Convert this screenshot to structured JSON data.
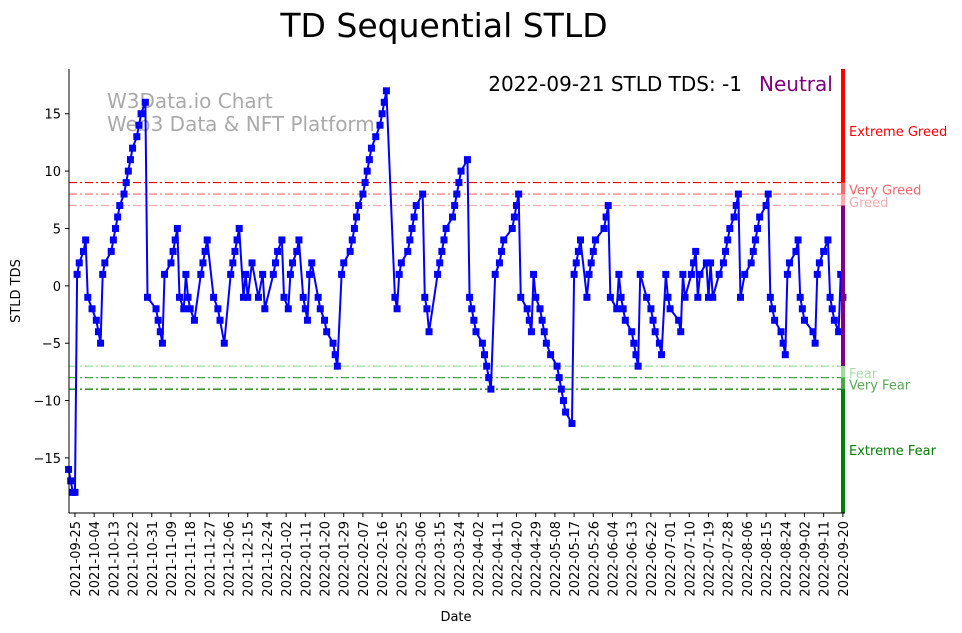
{
  "chart_data": {
    "type": "line",
    "title": "TD Sequential STLD",
    "xlabel": "Date",
    "ylabel": "STLD TDS",
    "status_text": "2022-09-21 STLD TDS: -1",
    "status_label": "Neutral",
    "watermark": [
      "W3Data.io Chart",
      "Web3 Data & NFT Platform"
    ],
    "start_date": "2021-09-25",
    "xlim_days": [
      -2.8,
      361
    ],
    "ylim": [
      -19.8,
      18.9
    ],
    "yticks": [
      -15,
      -10,
      -5,
      0,
      5,
      10,
      15
    ],
    "xtick_labels": [
      "2021-09-25",
      "2021-10-04",
      "2021-10-13",
      "2021-10-22",
      "2021-10-31",
      "2021-11-09",
      "2021-11-18",
      "2021-11-27",
      "2021-12-06",
      "2021-12-15",
      "2021-12-24",
      "2022-01-02",
      "2022-01-11",
      "2022-01-20",
      "2022-01-29",
      "2022-02-07",
      "2022-02-16",
      "2022-02-25",
      "2022-03-06",
      "2022-03-15",
      "2022-03-24",
      "2022-04-02",
      "2022-04-11",
      "2022-04-20",
      "2022-04-29",
      "2022-05-08",
      "2022-05-17",
      "2022-05-26",
      "2022-06-04",
      "2022-06-13",
      "2022-06-22",
      "2022-07-01",
      "2022-07-10",
      "2022-07-19",
      "2022-07-28",
      "2022-08-06",
      "2022-08-15",
      "2022-08-24",
      "2022-09-02",
      "2022-09-11",
      "2022-09-20"
    ],
    "xtick_step_days": 9,
    "series": [
      {
        "name": "STLD TDS",
        "color": "#0000ff",
        "points_day_value": [
          [
            -3,
            -16
          ],
          [
            -2,
            -17
          ],
          [
            -1,
            -18
          ],
          [
            0,
            -18
          ],
          [
            1,
            1
          ],
          [
            2,
            2
          ],
          [
            4,
            3
          ],
          [
            5,
            4
          ],
          [
            6,
            -1
          ],
          [
            8,
            -2
          ],
          [
            10,
            -3
          ],
          [
            11,
            -4
          ],
          [
            12,
            -5
          ],
          [
            13,
            1
          ],
          [
            14,
            2
          ],
          [
            17,
            3
          ],
          [
            18,
            4
          ],
          [
            19,
            5
          ],
          [
            20,
            6
          ],
          [
            21,
            7
          ],
          [
            23,
            8
          ],
          [
            24,
            9
          ],
          [
            25,
            10
          ],
          [
            26,
            11
          ],
          [
            27,
            12
          ],
          [
            29,
            13
          ],
          [
            30,
            14
          ],
          [
            31,
            15
          ],
          [
            33,
            16
          ],
          [
            34,
            -1
          ],
          [
            38,
            -2
          ],
          [
            39,
            -3
          ],
          [
            40,
            -4
          ],
          [
            41,
            -5
          ],
          [
            42,
            1
          ],
          [
            45,
            2
          ],
          [
            46,
            3
          ],
          [
            47,
            4
          ],
          [
            48,
            5
          ],
          [
            49,
            -1
          ],
          [
            51,
            -2
          ],
          [
            52,
            1
          ],
          [
            53,
            -1
          ],
          [
            54,
            -2
          ],
          [
            56,
            -3
          ],
          [
            59,
            1
          ],
          [
            60,
            2
          ],
          [
            61,
            3
          ],
          [
            62,
            4
          ],
          [
            65,
            -1
          ],
          [
            67,
            -2
          ],
          [
            68,
            -3
          ],
          [
            70,
            -5
          ],
          [
            73,
            1
          ],
          [
            74,
            2
          ],
          [
            75,
            3
          ],
          [
            76,
            4
          ],
          [
            77,
            5
          ],
          [
            79,
            -1
          ],
          [
            80,
            1
          ],
          [
            81,
            -1
          ],
          [
            83,
            2
          ],
          [
            86,
            -1
          ],
          [
            88,
            1
          ],
          [
            89,
            -2
          ],
          [
            93,
            1
          ],
          [
            94,
            2
          ],
          [
            95,
            3
          ],
          [
            97,
            4
          ],
          [
            98,
            -1
          ],
          [
            100,
            -2
          ],
          [
            101,
            1
          ],
          [
            102,
            2
          ],
          [
            104,
            3
          ],
          [
            105,
            4
          ],
          [
            107,
            -1
          ],
          [
            108,
            -2
          ],
          [
            109,
            -3
          ],
          [
            110,
            1
          ],
          [
            111,
            2
          ],
          [
            114,
            -1
          ],
          [
            115,
            -2
          ],
          [
            117,
            -3
          ],
          [
            118,
            -4
          ],
          [
            121,
            -5
          ],
          [
            122,
            -6
          ],
          [
            123,
            -7
          ],
          [
            125,
            1
          ],
          [
            126,
            2
          ],
          [
            129,
            3
          ],
          [
            130,
            4
          ],
          [
            131,
            5
          ],
          [
            132,
            6
          ],
          [
            133,
            7
          ],
          [
            135,
            8
          ],
          [
            136,
            9
          ],
          [
            137,
            10
          ],
          [
            138,
            11
          ],
          [
            139,
            12
          ],
          [
            141,
            13
          ],
          [
            143,
            14
          ],
          [
            144,
            15
          ],
          [
            145,
            16
          ],
          [
            146,
            17
          ],
          [
            150,
            -1
          ],
          [
            151,
            -2
          ],
          [
            152,
            1
          ],
          [
            153,
            2
          ],
          [
            156,
            3
          ],
          [
            157,
            4
          ],
          [
            158,
            5
          ],
          [
            159,
            6
          ],
          [
            160,
            7
          ],
          [
            163,
            8
          ],
          [
            164,
            -1
          ],
          [
            165,
            -2
          ],
          [
            166,
            -4
          ],
          [
            170,
            1
          ],
          [
            171,
            2
          ],
          [
            172,
            3
          ],
          [
            173,
            4
          ],
          [
            174,
            5
          ],
          [
            177,
            6
          ],
          [
            178,
            7
          ],
          [
            179,
            8
          ],
          [
            180,
            9
          ],
          [
            181,
            10
          ],
          [
            184,
            11
          ],
          [
            185,
            -1
          ],
          [
            186,
            -2
          ],
          [
            187,
            -3
          ],
          [
            188,
            -4
          ],
          [
            191,
            -5
          ],
          [
            192,
            -6
          ],
          [
            193,
            -7
          ],
          [
            194,
            -8
          ],
          [
            195,
            -9
          ],
          [
            197,
            1
          ],
          [
            199,
            2
          ],
          [
            200,
            3
          ],
          [
            201,
            4
          ],
          [
            205,
            5
          ],
          [
            206,
            6
          ],
          [
            207,
            7
          ],
          [
            208,
            8
          ],
          [
            209,
            -1
          ],
          [
            212,
            -2
          ],
          [
            213,
            -3
          ],
          [
            214,
            -4
          ],
          [
            215,
            1
          ],
          [
            216,
            -1
          ],
          [
            218,
            -2
          ],
          [
            219,
            -3
          ],
          [
            220,
            -4
          ],
          [
            221,
            -5
          ],
          [
            223,
            -6
          ],
          [
            226,
            -7
          ],
          [
            227,
            -8
          ],
          [
            228,
            -9
          ],
          [
            229,
            -10
          ],
          [
            230,
            -11
          ],
          [
            233,
            -12
          ],
          [
            234,
            1
          ],
          [
            235,
            2
          ],
          [
            236,
            3
          ],
          [
            237,
            4
          ],
          [
            240,
            -1
          ],
          [
            241,
            1
          ],
          [
            242,
            2
          ],
          [
            243,
            3
          ],
          [
            244,
            4
          ],
          [
            248,
            5
          ],
          [
            249,
            6
          ],
          [
            250,
            7
          ],
          [
            251,
            -1
          ],
          [
            254,
            -2
          ],
          [
            255,
            1
          ],
          [
            256,
            -1
          ],
          [
            257,
            -2
          ],
          [
            258,
            -3
          ],
          [
            261,
            -4
          ],
          [
            262,
            -5
          ],
          [
            263,
            -6
          ],
          [
            264,
            -7
          ],
          [
            265,
            1
          ],
          [
            268,
            -1
          ],
          [
            270,
            -2
          ],
          [
            271,
            -3
          ],
          [
            272,
            -4
          ],
          [
            274,
            -5
          ],
          [
            275,
            -6
          ],
          [
            277,
            1
          ],
          [
            278,
            -1
          ],
          [
            279,
            -2
          ],
          [
            283,
            -3
          ],
          [
            284,
            -4
          ],
          [
            285,
            1
          ],
          [
            286,
            -1
          ],
          [
            289,
            1
          ],
          [
            290,
            2
          ],
          [
            291,
            3
          ],
          [
            292,
            -1
          ],
          [
            293,
            1
          ],
          [
            296,
            2
          ],
          [
            297,
            -1
          ],
          [
            298,
            2
          ],
          [
            299,
            -1
          ],
          [
            302,
            1
          ],
          [
            304,
            2
          ],
          [
            305,
            3
          ],
          [
            306,
            4
          ],
          [
            307,
            5
          ],
          [
            309,
            6
          ],
          [
            310,
            7
          ],
          [
            311,
            8
          ],
          [
            312,
            -1
          ],
          [
            314,
            1
          ],
          [
            317,
            2
          ],
          [
            318,
            3
          ],
          [
            319,
            4
          ],
          [
            320,
            5
          ],
          [
            321,
            6
          ],
          [
            324,
            7
          ],
          [
            325,
            8
          ],
          [
            326,
            -1
          ],
          [
            327,
            -2
          ],
          [
            328,
            -3
          ],
          [
            331,
            -4
          ],
          [
            332,
            -5
          ],
          [
            333,
            -6
          ],
          [
            334,
            1
          ],
          [
            335,
            2
          ],
          [
            338,
            3
          ],
          [
            339,
            4
          ],
          [
            340,
            -1
          ],
          [
            341,
            -2
          ],
          [
            342,
            -3
          ],
          [
            346,
            -4
          ],
          [
            347,
            -5
          ],
          [
            348,
            1
          ],
          [
            349,
            2
          ],
          [
            351,
            3
          ],
          [
            353,
            4
          ],
          [
            354,
            -1
          ],
          [
            355,
            -2
          ],
          [
            356,
            -3
          ],
          [
            358,
            -4
          ],
          [
            359,
            1
          ],
          [
            360,
            -1
          ]
        ]
      }
    ],
    "thresholds": [
      {
        "value": 9,
        "label": "Extreme Greed",
        "color": "#ff0000"
      },
      {
        "value": 8,
        "label": "Very Greed",
        "color": "#ff6666"
      },
      {
        "value": 7,
        "label": "Greed",
        "color": "#ffaaaa"
      },
      {
        "value": -7,
        "label": "Fear",
        "color": "#99dd99"
      },
      {
        "value": -8,
        "label": "Very Fear",
        "color": "#44aa44"
      },
      {
        "value": -9,
        "label": "Extreme Fear",
        "color": "#007700"
      }
    ],
    "zone_bar": [
      {
        "from": 9,
        "to": 18.9,
        "color": "#ff0000"
      },
      {
        "from": 8,
        "to": 9,
        "color": "#ff6666"
      },
      {
        "from": 7,
        "to": 8,
        "color": "#ffaaaa"
      },
      {
        "from": -7,
        "to": 7,
        "color": "#800080"
      },
      {
        "from": -8,
        "to": -7,
        "color": "#99dd99"
      },
      {
        "from": -9,
        "to": -8,
        "color": "#44aa44"
      },
      {
        "from": -19.8,
        "to": -9,
        "color": "#008000"
      }
    ],
    "zone_labels": [
      {
        "label": "Extreme Greed",
        "value": 13.5,
        "color": "#ff0000"
      },
      {
        "label": "Very Greed",
        "value": 8.4,
        "color": "#ff6666"
      },
      {
        "label": "Greed",
        "value": 7.3,
        "color": "#ffaaaa"
      },
      {
        "label": "Fear",
        "value": -7.6,
        "color": "#aaddaa"
      },
      {
        "label": "Very Fear",
        "value": -8.6,
        "color": "#55aa55"
      },
      {
        "label": "Extreme Fear",
        "value": -14.3,
        "color": "#008000"
      }
    ],
    "grid": false,
    "legend": "none"
  }
}
